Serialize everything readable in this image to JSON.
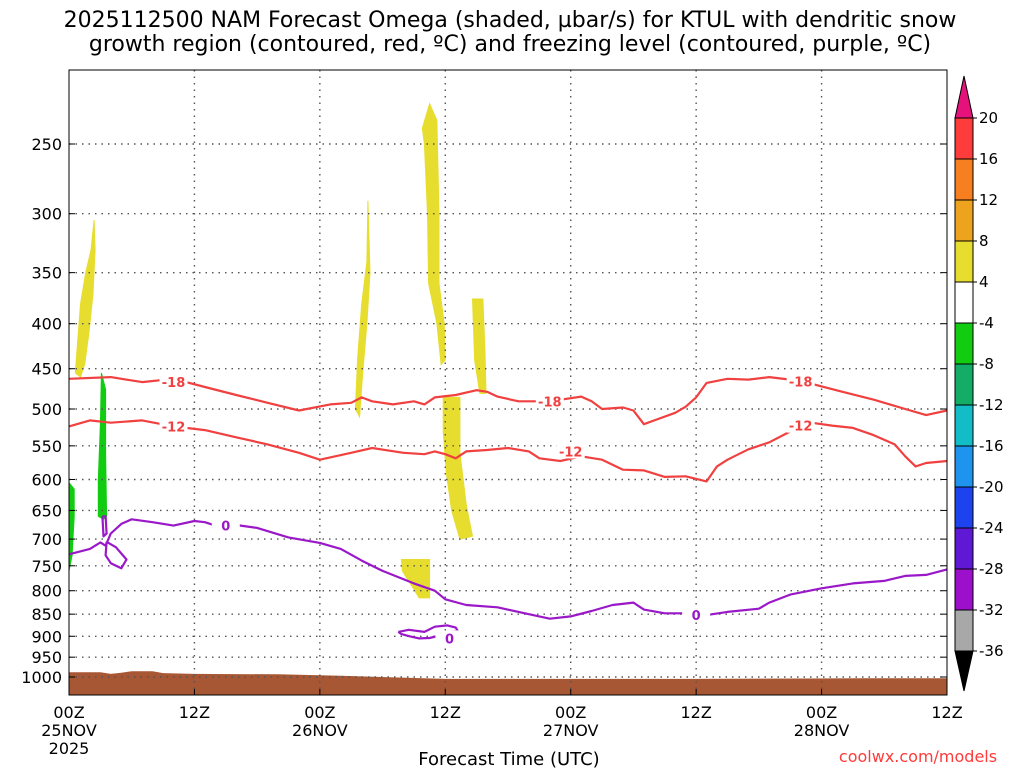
{
  "chart_data": {
    "type": "contour",
    "title_lines": [
      "2025112500 NAM Forecast Omega (shaded, µbar/s) for KTUL with dendritic snow",
      "growth region (contoured, red, ºC) and freezing level (contoured, purple, ºC)"
    ],
    "xlabel": "Forecast Time (UTC)",
    "credit": "coolwx.com/models",
    "x_range_hours": [
      0,
      84
    ],
    "x_ticks": [
      {
        "hour": 0,
        "lines": [
          "00Z",
          "25NOV",
          "2025"
        ]
      },
      {
        "hour": 12,
        "lines": [
          "12Z"
        ]
      },
      {
        "hour": 24,
        "lines": [
          "00Z",
          "26NOV"
        ]
      },
      {
        "hour": 36,
        "lines": [
          "12Z"
        ]
      },
      {
        "hour": 48,
        "lines": [
          "00Z",
          "27NOV"
        ]
      },
      {
        "hour": 60,
        "lines": [
          "12Z"
        ]
      },
      {
        "hour": 72,
        "lines": [
          "00Z",
          "28NOV"
        ]
      },
      {
        "hour": 84,
        "lines": [
          "12Z"
        ]
      }
    ],
    "y_range_hpa": [
      1045,
      200
    ],
    "y_ticks": [
      250,
      300,
      350,
      400,
      450,
      500,
      550,
      600,
      650,
      700,
      750,
      800,
      850,
      900,
      950,
      1000
    ],
    "colorbar": {
      "levels": [
        20,
        16,
        12,
        8,
        4,
        -4,
        -8,
        -12,
        -16,
        -20,
        -24,
        -28,
        -32,
        -36
      ],
      "colors": [
        "#ff3c3c",
        "#f87f1f",
        "#eea31e",
        "#e6dd2f",
        "#ffffff",
        "#12cc12",
        "#13ad68",
        "#12bdc8",
        "#1f94ee",
        "#1d43ee",
        "#5f18d3",
        "#9c10cc",
        "#a8a8a8"
      ],
      "top_arrow": "#e5127b",
      "bottom_arrow": "#000000"
    },
    "omega_regions": [
      {
        "color": "#e6dd2f",
        "points": [
          [
            0.6,
            455
          ],
          [
            1.1,
            380
          ],
          [
            1.6,
            350
          ],
          [
            2.1,
            330
          ],
          [
            2.4,
            305
          ],
          [
            2.5,
            330
          ],
          [
            2.3,
            370
          ],
          [
            1.9,
            410
          ],
          [
            1.5,
            445
          ],
          [
            1.1,
            460
          ]
        ]
      },
      {
        "color": "#e6dd2f",
        "points": [
          [
            27.4,
            500
          ],
          [
            27.6,
            440
          ],
          [
            28.0,
            380
          ],
          [
            28.5,
            340
          ],
          [
            28.6,
            290
          ],
          [
            28.8,
            350
          ],
          [
            28.5,
            400
          ],
          [
            28.1,
            455
          ],
          [
            27.8,
            510
          ]
        ]
      },
      {
        "color": "#e6dd2f",
        "points": [
          [
            33.8,
            240
          ],
          [
            34.5,
            225
          ],
          [
            35.2,
            235
          ],
          [
            35.4,
            300
          ],
          [
            35.4,
            360
          ],
          [
            35.9,
            400
          ],
          [
            36.0,
            440
          ],
          [
            35.6,
            445
          ],
          [
            35.2,
            400
          ],
          [
            34.4,
            360
          ],
          [
            34.3,
            300
          ],
          [
            34.0,
            250
          ]
        ]
      },
      {
        "color": "#e6dd2f",
        "points": [
          [
            38.6,
            375
          ],
          [
            39.6,
            375
          ],
          [
            39.8,
            430
          ],
          [
            39.9,
            480
          ],
          [
            39.3,
            480
          ],
          [
            38.8,
            440
          ]
        ]
      },
      {
        "color": "#e6dd2f",
        "points": [
          [
            35.8,
            485
          ],
          [
            37.4,
            485
          ],
          [
            37.4,
            560
          ],
          [
            38.0,
            640
          ],
          [
            38.6,
            695
          ],
          [
            37.4,
            700
          ],
          [
            36.6,
            650
          ],
          [
            36.1,
            590
          ],
          [
            35.8,
            530
          ]
        ]
      },
      {
        "color": "#e6dd2f",
        "points": [
          [
            31.8,
            738
          ],
          [
            34.5,
            738
          ],
          [
            34.5,
            815
          ],
          [
            33.5,
            815
          ],
          [
            31.9,
            760
          ]
        ]
      },
      {
        "color": "#12cc12",
        "points": [
          [
            0.0,
            605
          ],
          [
            0.5,
            615
          ],
          [
            0.5,
            660
          ],
          [
            0.3,
            730
          ],
          [
            0.0,
            760
          ]
        ]
      },
      {
        "color": "#12cc12",
        "points": [
          [
            2.8,
            600
          ],
          [
            3.0,
            520
          ],
          [
            3.1,
            455
          ],
          [
            3.5,
            475
          ],
          [
            3.5,
            560
          ],
          [
            3.6,
            660
          ],
          [
            3.3,
            665
          ],
          [
            2.8,
            660
          ]
        ]
      }
    ],
    "dgz_contours": [
      {
        "label": "-18",
        "color": "#f04040",
        "points": [
          [
            0,
            462
          ],
          [
            4,
            460
          ],
          [
            7,
            466
          ],
          [
            10,
            462
          ],
          [
            13,
            472
          ],
          [
            16,
            482
          ],
          [
            19,
            492
          ],
          [
            22,
            502
          ],
          [
            25,
            494
          ],
          [
            27,
            492
          ],
          [
            28,
            485
          ],
          [
            29,
            490
          ],
          [
            31,
            494
          ],
          [
            33,
            490
          ],
          [
            34,
            494
          ],
          [
            35,
            485
          ],
          [
            37,
            482
          ],
          [
            39,
            476
          ],
          [
            40,
            478
          ],
          [
            41,
            484
          ],
          [
            43,
            490
          ],
          [
            46,
            490
          ],
          [
            49,
            484
          ],
          [
            50,
            490
          ],
          [
            51,
            500
          ],
          [
            53,
            498
          ],
          [
            54,
            502
          ],
          [
            55,
            520
          ],
          [
            56,
            515
          ],
          [
            58,
            505
          ],
          [
            59,
            497
          ],
          [
            60,
            485
          ],
          [
            61,
            467
          ],
          [
            63,
            462
          ],
          [
            65,
            463
          ],
          [
            67,
            460
          ],
          [
            69,
            463
          ],
          [
            71,
            468
          ],
          [
            74,
            478
          ],
          [
            77,
            488
          ],
          [
            80,
            500
          ],
          [
            82,
            508
          ],
          [
            84,
            502
          ]
        ]
      },
      {
        "label": "-12",
        "color": "#f04040",
        "points": [
          [
            0,
            523
          ],
          [
            2,
            515
          ],
          [
            4,
            518
          ],
          [
            7,
            515
          ],
          [
            10,
            523
          ],
          [
            13,
            528
          ],
          [
            16,
            538
          ],
          [
            19,
            548
          ],
          [
            22,
            560
          ],
          [
            24,
            570
          ],
          [
            27,
            560
          ],
          [
            29,
            553
          ],
          [
            32,
            560
          ],
          [
            34,
            562
          ],
          [
            35,
            558
          ],
          [
            36,
            562
          ],
          [
            37,
            568
          ],
          [
            38,
            558
          ],
          [
            40,
            556
          ],
          [
            42,
            553
          ],
          [
            44,
            558
          ],
          [
            45,
            568
          ],
          [
            47,
            572
          ],
          [
            49,
            565
          ],
          [
            51,
            570
          ],
          [
            53,
            585
          ],
          [
            55,
            586
          ],
          [
            57,
            596
          ],
          [
            59,
            595
          ],
          [
            61,
            603
          ],
          [
            62,
            580
          ],
          [
            63,
            570
          ],
          [
            65,
            555
          ],
          [
            67,
            545
          ],
          [
            69,
            530
          ],
          [
            71,
            518
          ],
          [
            73,
            522
          ],
          [
            75,
            525
          ],
          [
            77,
            535
          ],
          [
            79,
            548
          ],
          [
            80,
            565
          ],
          [
            81,
            580
          ],
          [
            82,
            575
          ],
          [
            84,
            572
          ]
        ]
      }
    ],
    "freezing_contours": [
      {
        "label": "0",
        "color": "#9a18c8",
        "points": [
          [
            0,
            728
          ],
          [
            2,
            718
          ],
          [
            3,
            706
          ],
          [
            3.5,
            712
          ],
          [
            4,
            690
          ],
          [
            5,
            673
          ],
          [
            6,
            665
          ],
          [
            8,
            670
          ],
          [
            10,
            676
          ],
          [
            12,
            668
          ],
          [
            13,
            670
          ],
          [
            14,
            676
          ],
          [
            16,
            675
          ],
          [
            18,
            680
          ],
          [
            21,
            697
          ],
          [
            24,
            707
          ],
          [
            26,
            718
          ],
          [
            28,
            740
          ],
          [
            30,
            760
          ],
          [
            33,
            785
          ],
          [
            35,
            800
          ],
          [
            36,
            818
          ],
          [
            38,
            830
          ],
          [
            41,
            835
          ],
          [
            44,
            850
          ],
          [
            46,
            860
          ],
          [
            48,
            855
          ],
          [
            50,
            843
          ],
          [
            52,
            830
          ],
          [
            54,
            825
          ],
          [
            55,
            840
          ],
          [
            57,
            848
          ],
          [
            59,
            848
          ],
          [
            60,
            852
          ],
          [
            61,
            852
          ],
          [
            63,
            845
          ],
          [
            66,
            838
          ],
          [
            67,
            825
          ],
          [
            69,
            808
          ],
          [
            72,
            795
          ],
          [
            75,
            785
          ],
          [
            78,
            780
          ],
          [
            80,
            770
          ],
          [
            82,
            768
          ],
          [
            84,
            757
          ]
        ]
      },
      {
        "label": "",
        "color": "#9a18c8",
        "points": [
          [
            3.6,
            705
          ],
          [
            4.5,
            715
          ],
          [
            5.5,
            738
          ],
          [
            5.0,
            755
          ],
          [
            4.0,
            745
          ],
          [
            3.5,
            730
          ],
          [
            3.6,
            705
          ]
        ]
      },
      {
        "label": "",
        "color": "#9a18c8",
        "points": [
          [
            3.2,
            660
          ],
          [
            3.5,
            660
          ],
          [
            3.6,
            690
          ],
          [
            3.3,
            695
          ],
          [
            3.2,
            660
          ]
        ]
      },
      {
        "label": "0",
        "color": "#9a18c8",
        "points": [
          [
            31.5,
            890
          ],
          [
            32.5,
            885
          ],
          [
            34,
            890
          ],
          [
            35,
            878
          ],
          [
            36.2,
            875
          ],
          [
            37,
            880
          ],
          [
            37.2,
            888
          ],
          [
            36.3,
            890
          ],
          [
            35.5,
            898
          ],
          [
            34.5,
            904
          ],
          [
            33.5,
            905
          ],
          [
            32.6,
            900
          ],
          [
            31.8,
            895
          ],
          [
            31.5,
            890
          ]
        ]
      }
    ],
    "ground": {
      "color": "#a75733",
      "points": [
        [
          0,
          988
        ],
        [
          3,
          988
        ],
        [
          4,
          992
        ],
        [
          5,
          989
        ],
        [
          6,
          985
        ],
        [
          8,
          985
        ],
        [
          9,
          990
        ],
        [
          12,
          992
        ],
        [
          20,
          993
        ],
        [
          26,
          997
        ],
        [
          36,
          1005
        ],
        [
          60,
          1005
        ],
        [
          70,
          1004
        ],
        [
          76,
          1003
        ],
        [
          84,
          1003
        ]
      ]
    }
  }
}
